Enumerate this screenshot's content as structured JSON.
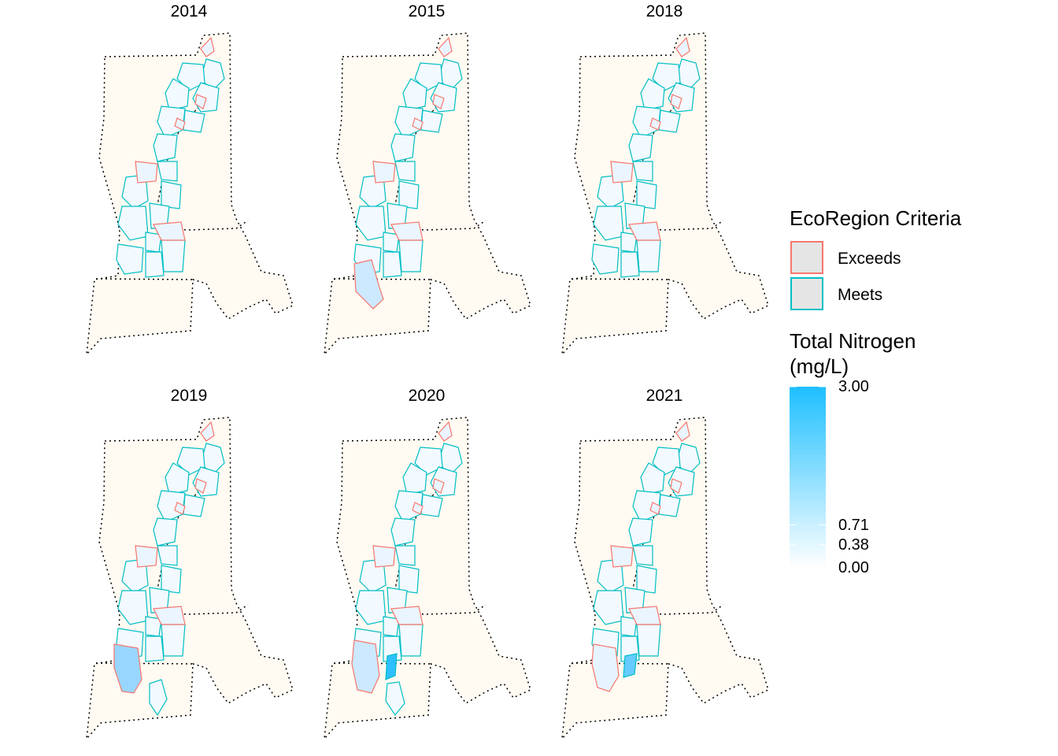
{
  "panels": [
    {
      "year": "2014"
    },
    {
      "year": "2015"
    },
    {
      "year": "2018"
    },
    {
      "year": "2019"
    },
    {
      "year": "2020"
    },
    {
      "year": "2021"
    }
  ],
  "legend_criteria": {
    "title": "EcoRegion Criteria",
    "items": [
      {
        "label": "Exceeds",
        "color": "#F8766D"
      },
      {
        "label": "Meets",
        "color": "#00BFC4"
      }
    ]
  },
  "legend_nitrogen": {
    "title_line1": "Total Nitrogen",
    "title_line2": "(mg/L)",
    "ticks": [
      "3.00",
      "0.71",
      "0.38",
      "0.00"
    ],
    "tick_values": [
      3.0,
      0.71,
      0.38,
      0.0
    ],
    "min": 0.0,
    "max": 3.0,
    "low_color": "#FFFFFF",
    "high_color": "#1EBFFF"
  },
  "colors": {
    "land": "#FFFAF2",
    "exceeds_outline": "#F8766D",
    "meets_outline": "#00BFC4"
  }
}
